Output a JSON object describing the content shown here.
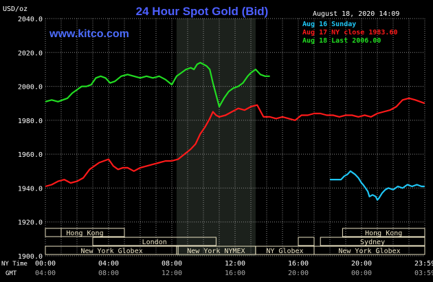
{
  "title": "24 Hour Spot Gold (Bid)",
  "date_label": "August 18, 2020 14:09",
  "unit_label": "USD/oz",
  "website": "www.kitco.com",
  "row_labels": {
    "ny_time": "NY Time",
    "gmt": "GMT"
  },
  "colors": {
    "background": "#000000",
    "plot": "#000000",
    "grid": "#8a8a8a",
    "title": "#4d5fff",
    "website": "#4d6dff",
    "text": "#ffffff",
    "shade": "#1c211c",
    "market_box": "#ede5c5",
    "market_text": "#000000"
  },
  "legend": [
    {
      "label": "Aug 16 Sunday",
      "color": "#1fc6f5"
    },
    {
      "label": "Aug 17 NY close 1983.60",
      "color": "#ff1a1a"
    },
    {
      "label": "Aug 18 Last 2006.00",
      "color": "#22dd22"
    }
  ],
  "chart_data": {
    "type": "line",
    "title": "24 Hour Spot Gold (Bid)",
    "ylabel": "USD/oz",
    "xlabel": "",
    "xlim": [
      0,
      24
    ],
    "ylim": [
      1900,
      2040
    ],
    "y_ticks": [
      "1900.0",
      "1920.0",
      "1940.0",
      "1960.0",
      "1980.0",
      "2000.0",
      "2020.0",
      "2040.0"
    ],
    "x_ticks_ny": [
      "00:00",
      "04:00",
      "08:00",
      "12:00",
      "16:00",
      "20:00",
      "23:59"
    ],
    "x_ticks_gmt": [
      "04:00",
      "08:00",
      "12:00",
      "16:00",
      "20:00",
      "00:00",
      "03:59"
    ],
    "grid": true,
    "legend_position": "top-right",
    "shaded_hours": [
      8.3,
      13.3
    ],
    "series": [
      {
        "name": "Aug 16 Sunday",
        "color": "#1fc6f5",
        "x": [
          18.0,
          18.4,
          18.7,
          18.9,
          19.1,
          19.3,
          19.6,
          19.8,
          20.0,
          20.1,
          20.25,
          20.4,
          20.5,
          20.7,
          20.9,
          21.0,
          21.1,
          21.3,
          21.5,
          21.7,
          22.0,
          22.3,
          22.6,
          22.9,
          23.2,
          23.5,
          23.8,
          23.99
        ],
        "y": [
          1945,
          1945,
          1945,
          1947,
          1948,
          1950,
          1948,
          1946,
          1943,
          1942,
          1940,
          1938,
          1935,
          1936,
          1935,
          1933,
          1934,
          1937,
          1939,
          1940,
          1939,
          1941,
          1940,
          1942,
          1941,
          1942,
          1941,
          1941
        ]
      },
      {
        "name": "Aug 17 NY close 1983.60",
        "color": "#ff1a1a",
        "x": [
          0.0,
          0.4,
          0.8,
          1.2,
          1.6,
          2.0,
          2.4,
          2.8,
          3.1,
          3.4,
          3.7,
          4.0,
          4.3,
          4.6,
          4.9,
          5.2,
          5.6,
          6.0,
          6.4,
          6.8,
          7.2,
          7.6,
          8.0,
          8.4,
          8.8,
          9.2,
          9.5,
          9.8,
          10.1,
          10.4,
          10.6,
          10.8,
          11.0,
          11.4,
          11.8,
          12.2,
          12.6,
          13.0,
          13.4,
          13.8,
          14.2,
          14.6,
          15.0,
          15.4,
          15.8,
          16.2,
          16.6,
          17.0,
          17.4,
          17.8,
          18.2,
          18.6,
          19.0,
          19.4,
          19.8,
          20.2,
          20.6,
          21.0,
          21.4,
          21.8,
          22.2,
          22.6,
          23.0,
          23.4,
          23.99
        ],
        "y": [
          1941,
          1942,
          1944,
          1945,
          1943,
          1944,
          1946,
          1951,
          1953,
          1955,
          1956,
          1957,
          1953,
          1951,
          1952,
          1952,
          1950,
          1952,
          1953,
          1954,
          1955,
          1956,
          1956,
          1957,
          1960,
          1963,
          1966,
          1972,
          1976,
          1981,
          1985,
          1983,
          1982,
          1983,
          1985,
          1987,
          1986,
          1988,
          1989,
          1982,
          1982,
          1981,
          1982,
          1981,
          1980,
          1983,
          1983,
          1984,
          1984,
          1983,
          1983,
          1982,
          1983,
          1983,
          1982,
          1983,
          1982,
          1984,
          1985,
          1986,
          1988,
          1992,
          1993,
          1992,
          1990
        ]
      },
      {
        "name": "Aug 18 Last 2006.00",
        "color": "#22dd22",
        "x": [
          0.0,
          0.4,
          0.8,
          1.1,
          1.4,
          1.7,
          2.0,
          2.3,
          2.6,
          2.9,
          3.2,
          3.5,
          3.8,
          4.1,
          4.4,
          4.8,
          5.2,
          5.6,
          6.0,
          6.4,
          6.8,
          7.2,
          7.6,
          8.0,
          8.3,
          8.6,
          8.9,
          9.2,
          9.4,
          9.6,
          9.8,
          10.0,
          10.2,
          10.4,
          10.6,
          10.8,
          11.0,
          11.3,
          11.6,
          11.9,
          12.2,
          12.5,
          12.8,
          13.0,
          13.3,
          13.6,
          13.9,
          14.2
        ],
        "y": [
          1991,
          1992,
          1991,
          1992,
          1993,
          1996,
          1998,
          2000,
          2000,
          2001,
          2005,
          2006,
          2005,
          2002,
          2003,
          2006,
          2007,
          2006,
          2005,
          2006,
          2005,
          2006,
          2004,
          2001,
          2006,
          2008,
          2010,
          2011,
          2010,
          2013,
          2014,
          2013,
          2012,
          2010,
          2002,
          1995,
          1988,
          1993,
          1997,
          1999,
          2000,
          2002,
          2006,
          2008,
          2010,
          2007,
          2006,
          2006
        ]
      }
    ]
  },
  "markets": [
    {
      "label": "Hong Kong",
      "row": 0,
      "start": 0.0,
      "end": 5.0
    },
    {
      "label": "Hong Kong",
      "row": 0,
      "start": 18.8,
      "end": 24.0
    },
    {
      "label": "London",
      "row": 1,
      "start": 3.0,
      "end": 10.8
    },
    {
      "label": "Sydney",
      "row": 1,
      "start": 17.4,
      "end": 24.0
    },
    {
      "label": "New York Globex",
      "row": 2,
      "start": 0.0,
      "end": 8.4
    },
    {
      "label": "New York NYMEX",
      "row": 2,
      "start": 8.3,
      "end": 13.3
    },
    {
      "label": "NY Globex",
      "row": 2,
      "start": 13.3,
      "end": 17.0
    },
    {
      "label": "New York Globex",
      "row": 2,
      "start": 17.0,
      "end": 24.0
    },
    {
      "label": "",
      "row": 0,
      "start": 0.0,
      "end": 1.0
    },
    {
      "label": "",
      "row": 1,
      "start": 16.0,
      "end": 17.0
    }
  ]
}
